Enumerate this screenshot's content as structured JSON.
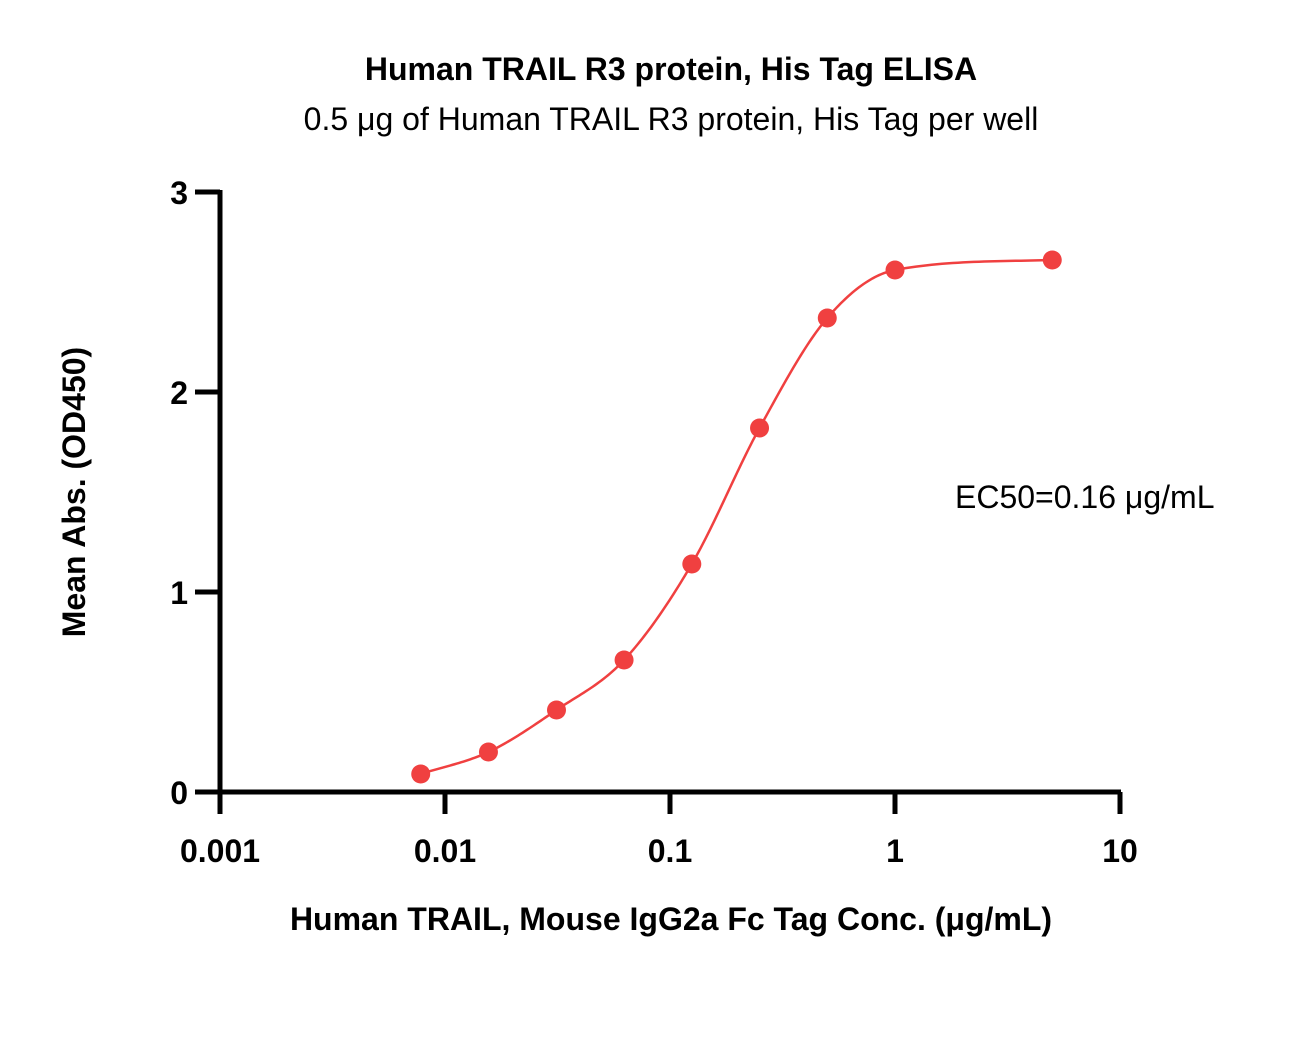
{
  "chart_data": {
    "type": "scatter",
    "title": "Human TRAIL R3 protein, His Tag ELISA",
    "subtitle": "0.5 μg of Human TRAIL R3 protein, His Tag per well",
    "xlabel": "Human TRAIL, Mouse IgG2a Fc Tag Conc. (μg/mL)",
    "ylabel": "Mean Abs. (OD450)",
    "x_scale": "log",
    "xlim": [
      0.001,
      10
    ],
    "ylim": [
      0,
      3
    ],
    "x_ticks": [
      0.001,
      0.01,
      0.1,
      1,
      10
    ],
    "x_tick_labels": [
      "0.001",
      "0.01",
      "0.1",
      "1",
      "10"
    ],
    "y_ticks": [
      0,
      1,
      2,
      3
    ],
    "y_tick_labels": [
      "0",
      "1",
      "2",
      "3"
    ],
    "series": [
      {
        "x": [
          0.0078,
          0.0156,
          0.0313,
          0.0625,
          0.125,
          0.25,
          0.5,
          1,
          5
        ],
        "y": [
          0.09,
          0.2,
          0.41,
          0.66,
          1.14,
          1.82,
          2.37,
          2.61,
          2.66
        ],
        "color": "#f04040"
      }
    ],
    "fit_curve": {
      "model": "4PL",
      "color": "#f04040",
      "x_range": [
        0.0078,
        5
      ]
    },
    "annotation": "EC50=0.16 μg/mL",
    "grid": false,
    "legend": "none"
  }
}
